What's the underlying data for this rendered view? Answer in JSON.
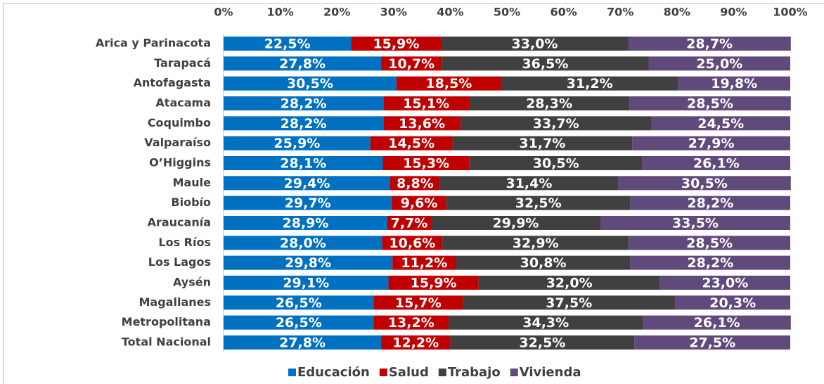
{
  "chart_data": {
    "type": "bar",
    "orientation": "horizontal",
    "stacked": true,
    "categories": [
      "Arica y Parinacota",
      "Tarapacá",
      "Antofagasta",
      "Atacama",
      "Coquimbo",
      "Valparaíso",
      "O’Higgins",
      "Maule",
      "Biobío",
      "Araucanía",
      "Los Ríos",
      "Los Lagos",
      "Aysén",
      "Magallanes",
      "Metropolitana",
      "Total Nacional"
    ],
    "series": [
      {
        "name": "Educación",
        "color": "#0070c0",
        "values": [
          22.5,
          27.8,
          30.5,
          28.2,
          28.2,
          25.9,
          28.1,
          29.4,
          29.7,
          28.9,
          28.0,
          29.8,
          29.1,
          26.5,
          26.5,
          27.8
        ],
        "value_labels": [
          "22,5%",
          "27,8%",
          "30,5%",
          "28,2%",
          "28,2%",
          "25,9%",
          "28,1%",
          "29,4%",
          "29,7%",
          "28,9%",
          "28,0%",
          "29,8%",
          "29,1%",
          "26,5%",
          "26,5%",
          "27,8%"
        ]
      },
      {
        "name": "Salud",
        "color": "#c00000",
        "values": [
          15.9,
          10.7,
          18.5,
          15.1,
          13.6,
          14.5,
          15.3,
          8.8,
          9.6,
          7.7,
          10.6,
          11.2,
          15.9,
          15.7,
          13.2,
          12.2
        ],
        "value_labels": [
          "15,9%",
          "10,7%",
          "18,5%",
          "15,1%",
          "13,6%",
          "14,5%",
          "15,3%",
          "8,8%",
          "9,6%",
          "7,7%",
          "10,6%",
          "11,2%",
          "15,9%",
          "15,7%",
          "13,2%",
          "12,2%"
        ]
      },
      {
        "name": "Trabajo",
        "color": "#404040",
        "values": [
          33.0,
          36.5,
          31.2,
          28.3,
          33.7,
          31.7,
          30.5,
          31.4,
          32.5,
          29.9,
          32.9,
          30.8,
          32.0,
          37.5,
          34.3,
          32.5
        ],
        "value_labels": [
          "33,0%",
          "36,5%",
          "31,2%",
          "28,3%",
          "33,7%",
          "31,7%",
          "30,5%",
          "31,4%",
          "32,5%",
          "29,9%",
          "32,9%",
          "30,8%",
          "32,0%",
          "37,5%",
          "34,3%",
          "32,5%"
        ]
      },
      {
        "name": "Vivienda",
        "color": "#604a7b",
        "values": [
          28.7,
          25.0,
          19.8,
          28.5,
          24.5,
          27.9,
          26.1,
          30.5,
          28.2,
          33.5,
          28.5,
          28.2,
          23.0,
          20.3,
          26.1,
          27.5
        ],
        "value_labels": [
          "28,7%",
          "25,0%",
          "19,8%",
          "28,5%",
          "24,5%",
          "27,9%",
          "26,1%",
          "30,5%",
          "28,2%",
          "33,5%",
          "28,5%",
          "28,2%",
          "23,0%",
          "20,3%",
          "26,1%",
          "27,5%"
        ]
      }
    ],
    "xlim": [
      0,
      100
    ],
    "xticks": [
      {
        "value": 0,
        "label": "0%"
      },
      {
        "value": 10,
        "label": "10%"
      },
      {
        "value": 20,
        "label": "20%"
      },
      {
        "value": 30,
        "label": "30%"
      },
      {
        "value": 40,
        "label": "40%"
      },
      {
        "value": 50,
        "label": "50%"
      },
      {
        "value": 60,
        "label": "60%"
      },
      {
        "value": 70,
        "label": "70%"
      },
      {
        "value": 80,
        "label": "80%"
      },
      {
        "value": 90,
        "label": "90%"
      },
      {
        "value": 100,
        "label": "100%"
      }
    ],
    "legend": "bottom"
  }
}
